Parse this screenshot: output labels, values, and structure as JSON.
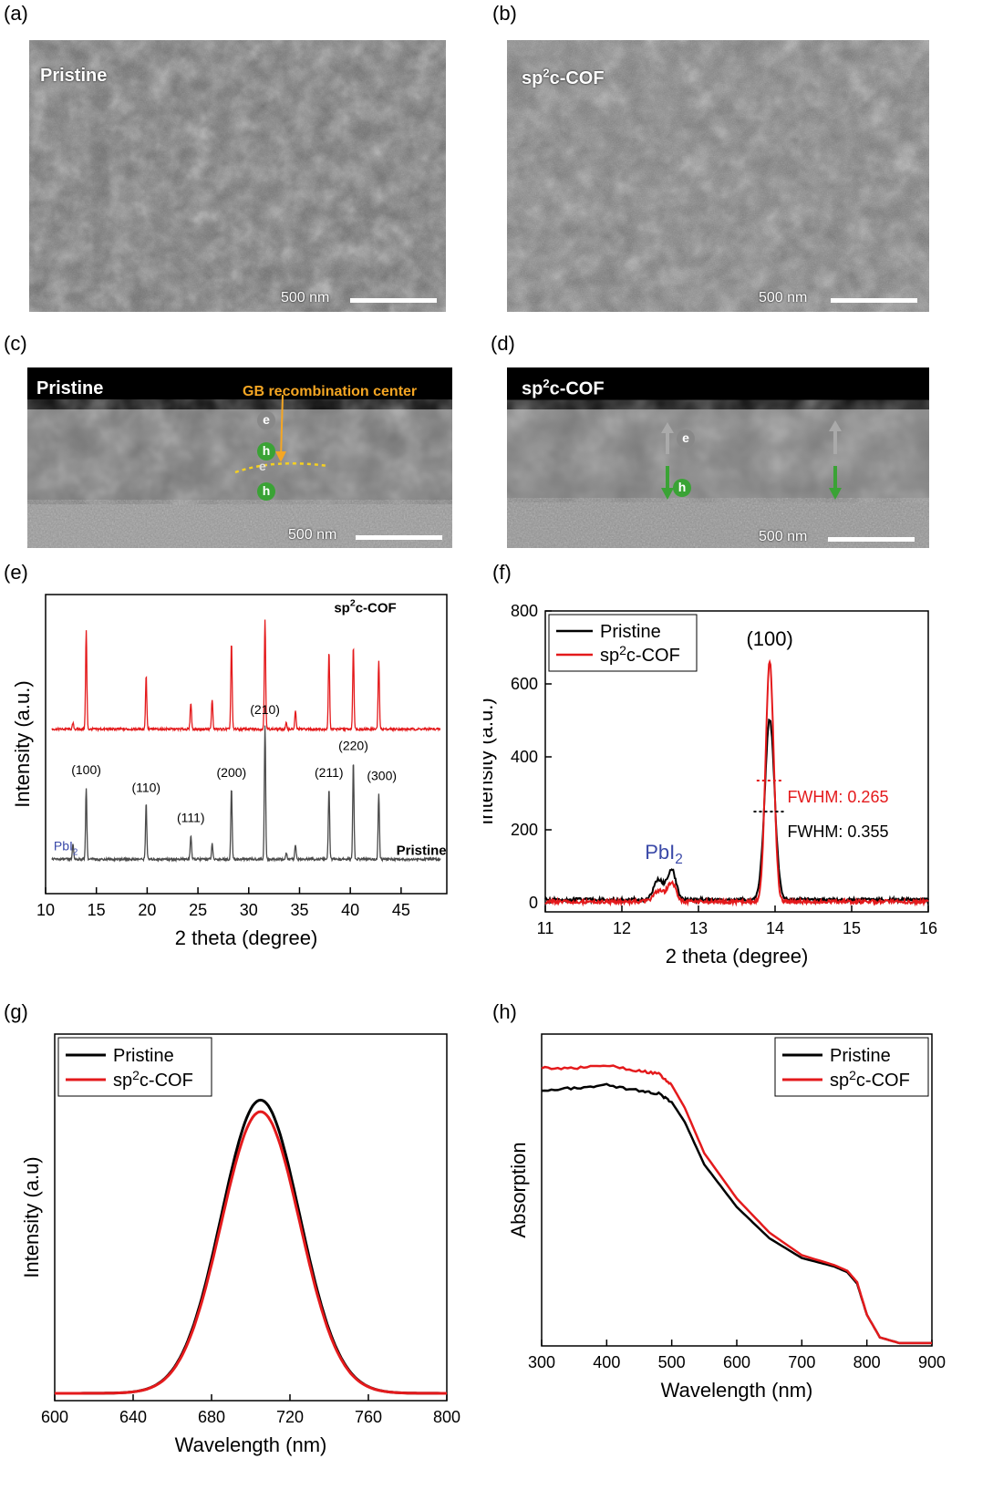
{
  "panels": {
    "a": {
      "label": "(a)",
      "title": "Pristine",
      "scale": "500 nm"
    },
    "b": {
      "label": "(b)",
      "title": "sp2c-COF",
      "scale": "500 nm"
    },
    "c": {
      "label": "(c)",
      "title": "Pristine",
      "scale": "500 nm",
      "annotation": "GB recombination center",
      "carriers": [
        "e",
        "h",
        "e",
        "h"
      ]
    },
    "d": {
      "label": "(d)",
      "title": "sp2c-COF",
      "scale": "500 nm",
      "carriers": [
        "e",
        "h"
      ]
    },
    "e": {
      "label": "(e)"
    },
    "f": {
      "label": "(f)"
    },
    "g": {
      "label": "(g)"
    },
    "h": {
      "label": "(h)"
    }
  },
  "colors": {
    "pristine": "#000000",
    "cof": "#e41a1c",
    "xrd_pristine": "#4a4a4a",
    "pbi2": "#3a49a8",
    "annotation": "#f5a623",
    "hole": "#3aa335"
  },
  "chart_data": [
    {
      "id": "e",
      "type": "line",
      "xlabel": "2 theta (degree)",
      "ylabel": "Intensity (a.u.)",
      "xlim": [
        10,
        49.5
      ],
      "xticks": [
        10,
        15,
        20,
        25,
        30,
        35,
        40,
        45
      ],
      "ylim": [
        0,
        1
      ],
      "series": [
        {
          "name": "sp2c-COF",
          "baseline": 0.55,
          "peaks": [
            [
              12.7,
              0.02
            ],
            [
              14.0,
              0.33
            ],
            [
              19.9,
              0.18
            ],
            [
              24.3,
              0.09
            ],
            [
              26.4,
              0.1
            ],
            [
              28.3,
              0.29
            ],
            [
              31.6,
              0.37
            ],
            [
              33.7,
              0.02
            ],
            [
              34.6,
              0.06
            ],
            [
              37.9,
              0.26
            ],
            [
              40.3,
              0.28
            ],
            [
              42.8,
              0.23
            ]
          ]
        },
        {
          "name": "Pristine",
          "baseline": 0.115,
          "peaks": [
            [
              12.7,
              0.05
            ],
            [
              14.0,
              0.24
            ],
            [
              19.9,
              0.19
            ],
            [
              24.3,
              0.08
            ],
            [
              26.4,
              0.05
            ],
            [
              28.3,
              0.24
            ],
            [
              31.6,
              0.45
            ],
            [
              33.7,
              0.02
            ],
            [
              34.6,
              0.05
            ],
            [
              37.9,
              0.24
            ],
            [
              40.3,
              0.33
            ],
            [
              42.8,
              0.22
            ]
          ]
        }
      ],
      "annotations": [
        {
          "text": "(100)",
          "x": 14.0,
          "y": 0.4
        },
        {
          "text": "(110)",
          "x": 19.9,
          "y": 0.34
        },
        {
          "text": "(111)",
          "x": 24.3,
          "y": 0.24
        },
        {
          "text": "(200)",
          "x": 28.3,
          "y": 0.39
        },
        {
          "text": "(210)",
          "x": 31.6,
          "y": 0.6
        },
        {
          "text": "(211)",
          "x": 37.9,
          "y": 0.39
        },
        {
          "text": "(220)",
          "x": 40.3,
          "y": 0.48
        },
        {
          "text": "(300)",
          "x": 43.1,
          "y": 0.38
        }
      ],
      "pbi2_label": "PbI",
      "pbi2_sub": "2",
      "series_label_cof": "sp2c-COF",
      "series_label_pristine": "Pristine"
    },
    {
      "id": "f",
      "type": "line",
      "xlabel": "2 theta (degree)",
      "ylabel": "Intensity (a.u.)",
      "xlim": [
        11,
        16
      ],
      "xticks": [
        11,
        12,
        13,
        14,
        15,
        16
      ],
      "ylim": [
        -25,
        800
      ],
      "yticks": [
        0,
        200,
        400,
        600,
        800
      ],
      "series": [
        {
          "name": "Pristine",
          "baseline": 8,
          "peaks": [
            [
              12.48,
              55,
              0.09
            ],
            [
              12.65,
              82,
              0.08
            ],
            [
              13.93,
              495,
              0.09
            ]
          ]
        },
        {
          "name": "sp2c-COF",
          "baseline": 3,
          "peaks": [
            [
              12.48,
              30,
              0.09
            ],
            [
              12.65,
              52,
              0.08
            ],
            [
              13.93,
              660,
              0.075
            ]
          ]
        }
      ],
      "peak_label": "(100)",
      "pbi2_label": "PbI",
      "pbi2_sub": "2",
      "fwhm_cof": "FWHM: 0.265",
      "fwhm_pristine": "FWHM: 0.355",
      "fwhm_cof_y": 335,
      "fwhm_pristine_y": 250,
      "legend": [
        "Pristine",
        "sp2c-COF"
      ]
    },
    {
      "id": "g",
      "type": "line",
      "xlabel": "Wavelength (nm)",
      "ylabel": "Intensity (a.u)",
      "xlim": [
        600,
        800
      ],
      "xticks": [
        600,
        640,
        680,
        720,
        760,
        800
      ],
      "ylim": [
        0,
        1.1
      ],
      "series": [
        {
          "name": "Pristine",
          "center": 705,
          "amplitude": 0.88,
          "width": 20
        },
        {
          "name": "sp2c-COF",
          "center": 705,
          "amplitude": 0.845,
          "width": 20
        }
      ],
      "legend": [
        "Pristine",
        "sp2c-COF"
      ]
    },
    {
      "id": "h",
      "type": "line",
      "xlabel": "Wavelength (nm)",
      "ylabel": "Absorption",
      "xlim": [
        300,
        900
      ],
      "xticks": [
        300,
        400,
        500,
        600,
        700,
        800,
        900
      ],
      "ylim": [
        0,
        1.1
      ],
      "series": [
        {
          "name": "Pristine",
          "points": [
            [
              300,
              0.9
            ],
            [
              350,
              0.91
            ],
            [
              400,
              0.92
            ],
            [
              450,
              0.9
            ],
            [
              480,
              0.89
            ],
            [
              500,
              0.86
            ],
            [
              520,
              0.79
            ],
            [
              550,
              0.64
            ],
            [
              600,
              0.49
            ],
            [
              650,
              0.38
            ],
            [
              700,
              0.31
            ],
            [
              750,
              0.28
            ],
            [
              770,
              0.26
            ],
            [
              785,
              0.22
            ],
            [
              800,
              0.11
            ],
            [
              820,
              0.03
            ],
            [
              850,
              0.01
            ],
            [
              900,
              0.01
            ]
          ]
        },
        {
          "name": "sp2c-COF",
          "points": [
            [
              300,
              0.98
            ],
            [
              350,
              0.98
            ],
            [
              400,
              0.99
            ],
            [
              450,
              0.97
            ],
            [
              480,
              0.96
            ],
            [
              500,
              0.92
            ],
            [
              520,
              0.84
            ],
            [
              550,
              0.68
            ],
            [
              600,
              0.52
            ],
            [
              650,
              0.4
            ],
            [
              700,
              0.32
            ],
            [
              750,
              0.285
            ],
            [
              770,
              0.265
            ],
            [
              785,
              0.225
            ],
            [
              800,
              0.11
            ],
            [
              820,
              0.03
            ],
            [
              850,
              0.01
            ],
            [
              900,
              0.01
            ]
          ]
        }
      ],
      "legend": [
        "Pristine",
        "sp2c-COF"
      ]
    }
  ]
}
